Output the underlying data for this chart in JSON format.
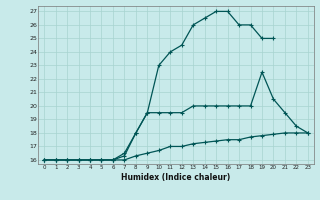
{
  "xlabel": "Humidex (Indice chaleur)",
  "ylabel": "",
  "bg_color": "#c8eaea",
  "grid_color": "#a8d4d0",
  "line_color": "#005555",
  "xlim": [
    -0.5,
    23.5
  ],
  "ylim": [
    15.7,
    27.4
  ],
  "xticks": [
    0,
    1,
    2,
    3,
    4,
    5,
    6,
    7,
    8,
    9,
    10,
    11,
    12,
    13,
    14,
    15,
    16,
    17,
    18,
    19,
    20,
    21,
    22,
    23
  ],
  "yticks": [
    16,
    17,
    18,
    19,
    20,
    21,
    22,
    23,
    24,
    25,
    26,
    27
  ],
  "line1_x": [
    0,
    1,
    2,
    3,
    4,
    5,
    6,
    7,
    8,
    9,
    10,
    11,
    12,
    13,
    14,
    15,
    16,
    17,
    18,
    19,
    20,
    21,
    22,
    23
  ],
  "line1_y": [
    16,
    16,
    16,
    16,
    16,
    16,
    16,
    16,
    16.3,
    16.5,
    16.7,
    17,
    17,
    17.2,
    17.3,
    17.4,
    17.5,
    17.5,
    17.7,
    17.8,
    17.9,
    18,
    18,
    18
  ],
  "line2_x": [
    0,
    1,
    2,
    3,
    4,
    5,
    6,
    7,
    8,
    9,
    10,
    11,
    12,
    13,
    14,
    15,
    16,
    17,
    18,
    19,
    20,
    21,
    22,
    23
  ],
  "line2_y": [
    16,
    16,
    16,
    16,
    16,
    16,
    16,
    16.3,
    18,
    19.5,
    19.5,
    19.5,
    19.5,
    20,
    20,
    20,
    20,
    20,
    20,
    22.5,
    20.5,
    19.5,
    18.5,
    18
  ],
  "line3_x": [
    0,
    1,
    2,
    3,
    4,
    5,
    6,
    7,
    8,
    9,
    10,
    11,
    12,
    13,
    14,
    15,
    16,
    17,
    18,
    19,
    20
  ],
  "line3_y": [
    16,
    16,
    16,
    16,
    16,
    16,
    16,
    16.5,
    18,
    19.5,
    23,
    24,
    24.5,
    26,
    26.5,
    27,
    27,
    26,
    26,
    25,
    25
  ]
}
